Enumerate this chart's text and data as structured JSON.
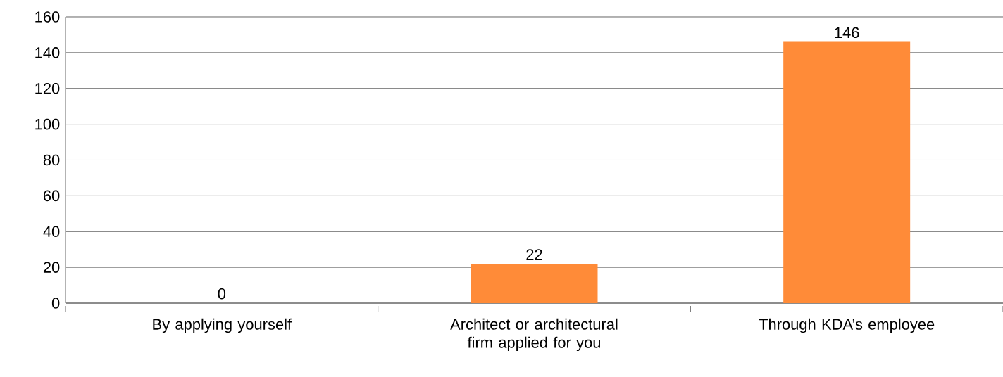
{
  "chart_data": {
    "type": "bar",
    "categories": [
      "By applying yourself",
      "Architect or architectural firm applied for you",
      "Through KDA’s employee"
    ],
    "values": [
      0,
      22,
      146
    ],
    "color": "#ff8b38",
    "ylim": [
      0,
      160
    ],
    "yticks": [
      0,
      20,
      40,
      60,
      80,
      100,
      120,
      140,
      160
    ],
    "grid": "y",
    "data_labels": true
  }
}
